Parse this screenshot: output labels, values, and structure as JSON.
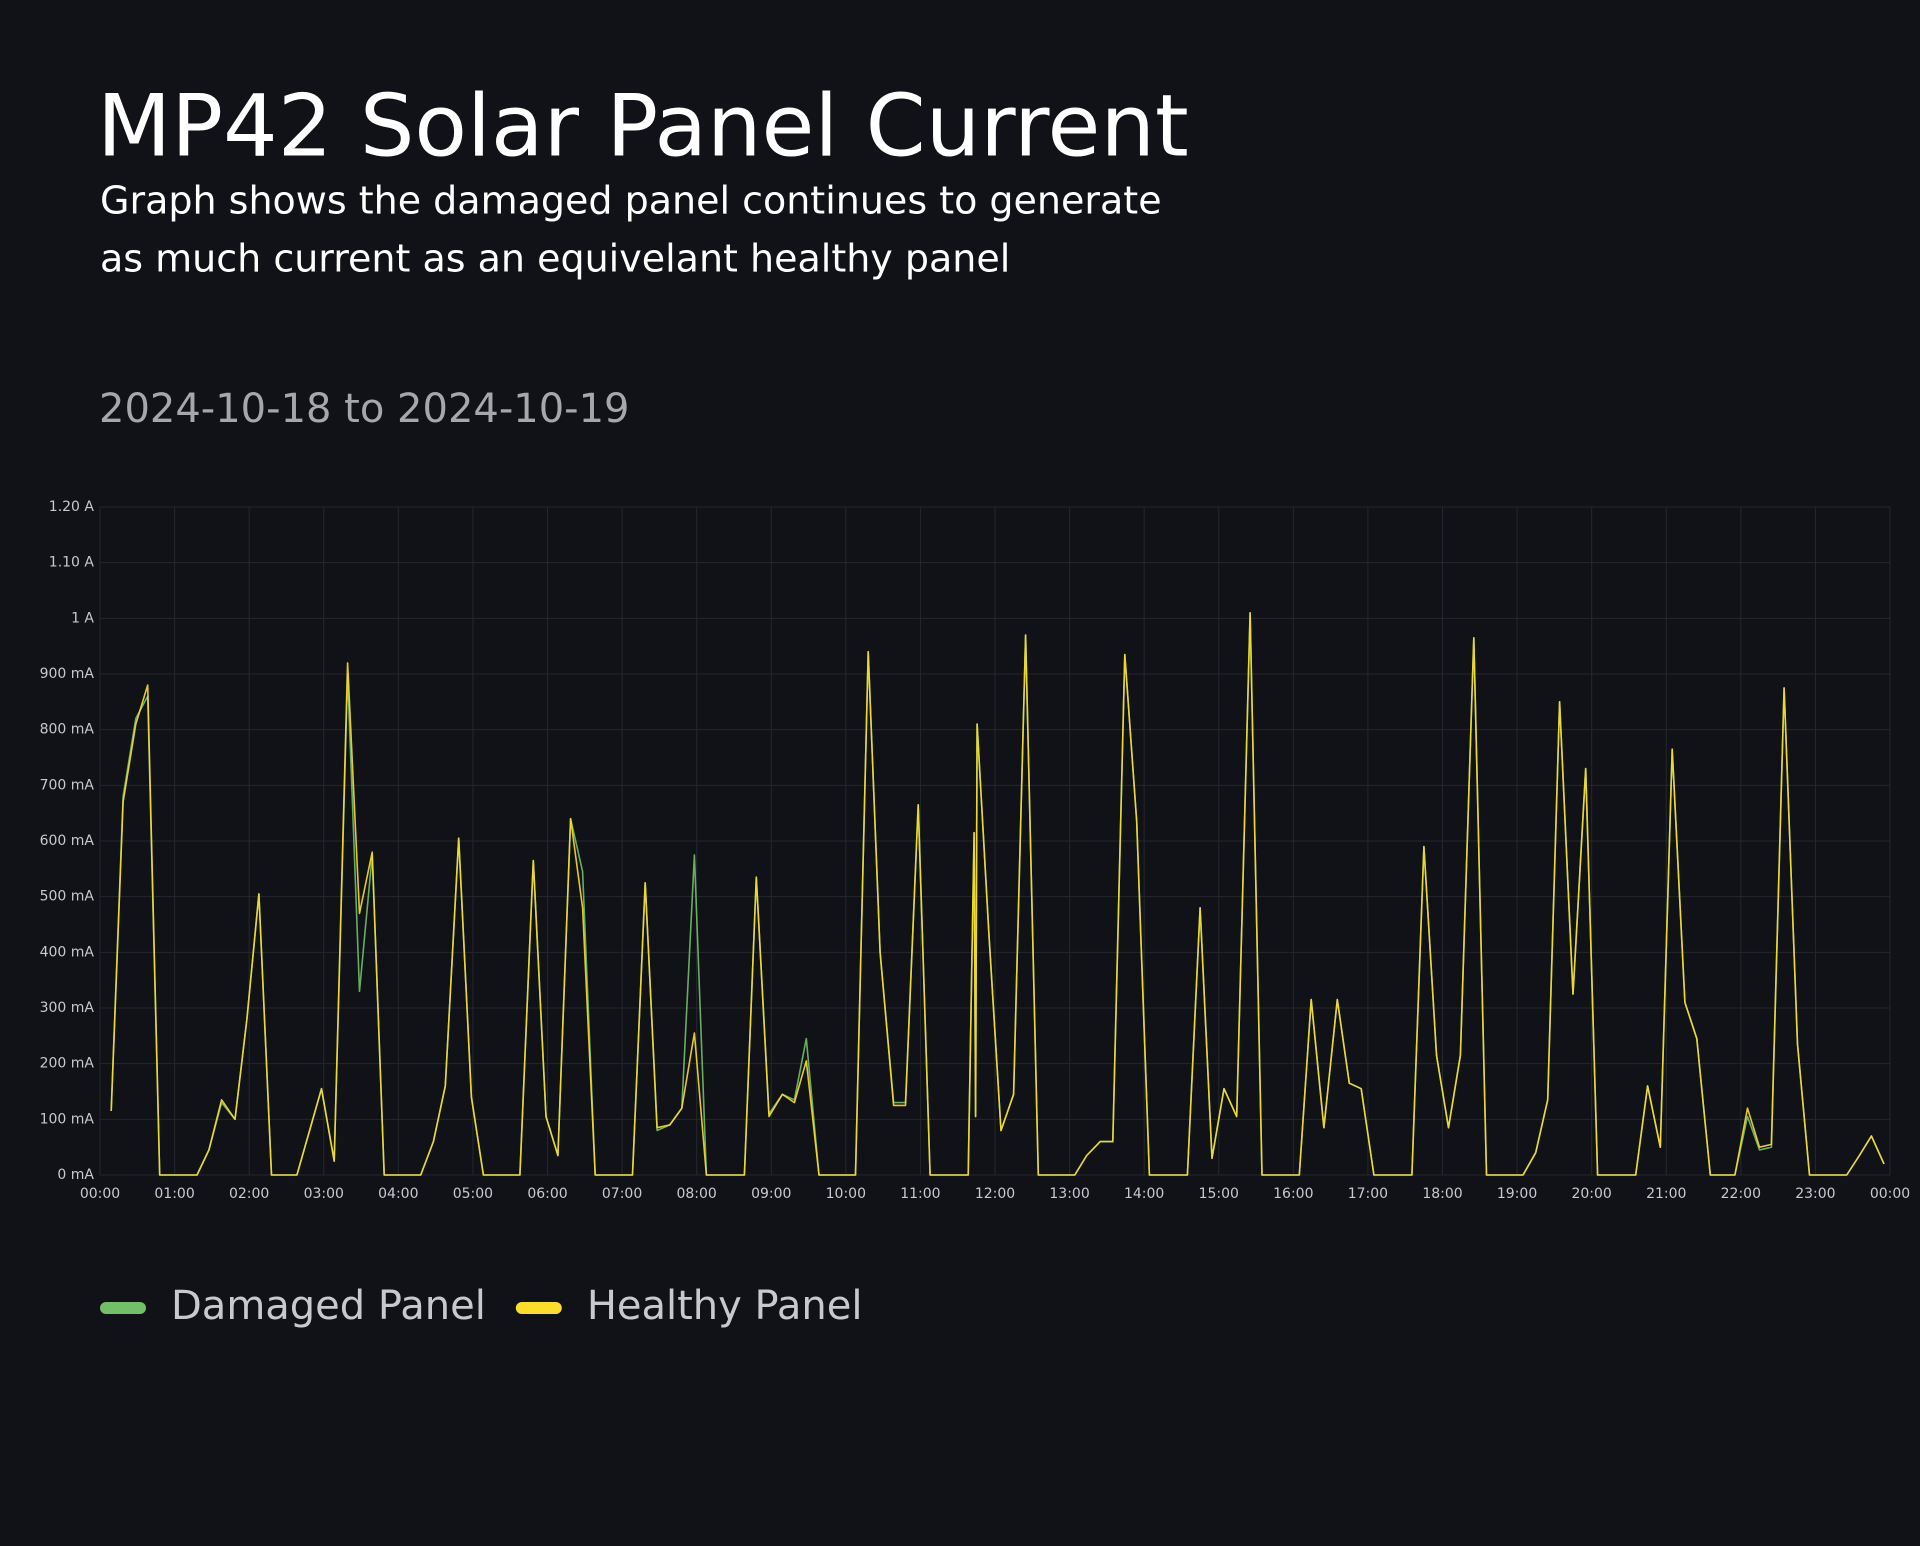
{
  "chart_data": {
    "type": "line",
    "title": "MP42 Solar Panel Current",
    "subtitle": [
      "Graph shows the damaged panel continues to generate",
      "as much current as an equivelant healthy panel"
    ],
    "date_range": "2024-10-18 to 2024-10-19",
    "x": [
      0.15,
      0.31,
      0.48,
      0.64,
      0.8,
      1.3,
      1.46,
      1.63,
      1.81,
      1.97,
      2.13,
      2.3,
      2.64,
      2.81,
      2.97,
      3.14,
      3.32,
      3.48,
      3.65,
      3.81,
      4.3,
      4.47,
      4.63,
      4.81,
      4.98,
      5.14,
      5.63,
      5.81,
      5.98,
      6.14,
      6.31,
      6.47,
      6.64,
      7.14,
      7.31,
      7.47,
      7.64,
      7.8,
      7.97,
      8.13,
      8.64,
      8.8,
      8.97,
      9.15,
      9.31,
      9.47,
      9.64,
      10.13,
      10.3,
      10.46,
      10.64,
      10.8,
      10.97,
      11.13,
      11.64,
      11.72,
      11.74,
      11.76,
      11.92,
      12.08,
      12.25,
      12.41,
      12.58,
      13.07,
      13.23,
      13.41,
      13.58,
      13.74,
      13.9,
      14.07,
      14.58,
      14.75,
      14.91,
      15.07,
      15.24,
      15.42,
      15.58,
      16.08,
      16.24,
      16.41,
      16.59,
      16.75,
      16.91,
      17.08,
      17.59,
      17.75,
      17.92,
      18.08,
      18.24,
      18.42,
      18.59,
      19.08,
      19.25,
      19.41,
      19.57,
      19.75,
      19.92,
      20.08,
      20.59,
      20.75,
      20.92,
      21.08,
      21.25,
      21.41,
      21.59,
      21.92,
      22.09,
      22.25,
      22.41,
      22.58,
      22.76,
      22.92,
      23.42,
      23.59,
      23.75,
      23.92
    ],
    "series": [
      {
        "name": "Damaged Panel",
        "color": "#73bf69",
        "values": [
          115,
          680,
          820,
          860,
          0,
          0,
          45,
          130,
          100,
          280,
          505,
          0,
          0,
          80,
          155,
          25,
          900,
          330,
          575,
          0,
          0,
          60,
          160,
          605,
          140,
          0,
          0,
          565,
          105,
          35,
          640,
          545,
          0,
          0,
          525,
          80,
          90,
          120,
          575,
          0,
          0,
          535,
          110,
          145,
          135,
          245,
          0,
          0,
          940,
          400,
          130,
          130,
          665,
          0,
          0,
          615,
          105,
          810,
          430,
          80,
          145,
          970,
          0,
          0,
          35,
          60,
          60,
          935,
          635,
          0,
          0,
          480,
          30,
          155,
          105,
          1010,
          0,
          0,
          315,
          85,
          315,
          165,
          155,
          0,
          0,
          590,
          215,
          85,
          215,
          965,
          0,
          0,
          40,
          135,
          850,
          325,
          730,
          0,
          0,
          160,
          50,
          765,
          310,
          245,
          0,
          0,
          105,
          45,
          50,
          875,
          235,
          0,
          0,
          35,
          70,
          20
        ]
      },
      {
        "name": "Healthy Panel",
        "color": "#fade2a",
        "values": [
          115,
          670,
          810,
          880,
          0,
          0,
          45,
          135,
          100,
          280,
          505,
          0,
          0,
          80,
          155,
          25,
          920,
          470,
          580,
          0,
          0,
          60,
          160,
          605,
          140,
          0,
          0,
          565,
          105,
          35,
          640,
          480,
          0,
          0,
          525,
          85,
          90,
          120,
          255,
          0,
          0,
          535,
          105,
          145,
          130,
          205,
          0,
          0,
          940,
          400,
          125,
          125,
          665,
          0,
          0,
          615,
          105,
          810,
          430,
          80,
          145,
          970,
          0,
          0,
          35,
          60,
          60,
          935,
          635,
          0,
          0,
          480,
          30,
          155,
          105,
          1010,
          0,
          0,
          315,
          85,
          315,
          165,
          155,
          0,
          0,
          590,
          215,
          85,
          215,
          965,
          0,
          0,
          40,
          135,
          850,
          325,
          730,
          0,
          0,
          160,
          50,
          765,
          310,
          245,
          0,
          0,
          120,
          50,
          55,
          875,
          235,
          0,
          0,
          35,
          70,
          20
        ]
      }
    ],
    "xlim": [
      0,
      24
    ],
    "xticks": [
      {
        "value": 0,
        "label": "00:00"
      },
      {
        "value": 1,
        "label": "01:00"
      },
      {
        "value": 2,
        "label": "02:00"
      },
      {
        "value": 3,
        "label": "03:00"
      },
      {
        "value": 4,
        "label": "04:00"
      },
      {
        "value": 5,
        "label": "05:00"
      },
      {
        "value": 6,
        "label": "06:00"
      },
      {
        "value": 7,
        "label": "07:00"
      },
      {
        "value": 8,
        "label": "08:00"
      },
      {
        "value": 9,
        "label": "09:00"
      },
      {
        "value": 10,
        "label": "10:00"
      },
      {
        "value": 11,
        "label": "11:00"
      },
      {
        "value": 12,
        "label": "12:00"
      },
      {
        "value": 13,
        "label": "13:00"
      },
      {
        "value": 14,
        "label": "14:00"
      },
      {
        "value": 15,
        "label": "15:00"
      },
      {
        "value": 16,
        "label": "16:00"
      },
      {
        "value": 17,
        "label": "17:00"
      },
      {
        "value": 18,
        "label": "18:00"
      },
      {
        "value": 19,
        "label": "19:00"
      },
      {
        "value": 20,
        "label": "20:00"
      },
      {
        "value": 21,
        "label": "21:00"
      },
      {
        "value": 22,
        "label": "22:00"
      },
      {
        "value": 23,
        "label": "23:00"
      },
      {
        "value": 24,
        "label": "00:00"
      }
    ],
    "ylim": [
      0,
      1200
    ],
    "yticks": [
      {
        "value": 0,
        "label": "0 mA"
      },
      {
        "value": 100,
        "label": "100 mA"
      },
      {
        "value": 200,
        "label": "200 mA"
      },
      {
        "value": 300,
        "label": "300 mA"
      },
      {
        "value": 400,
        "label": "400 mA"
      },
      {
        "value": 500,
        "label": "500 mA"
      },
      {
        "value": 600,
        "label": "600 mA"
      },
      {
        "value": 700,
        "label": "700 mA"
      },
      {
        "value": 800,
        "label": "800 mA"
      },
      {
        "value": 900,
        "label": "900 mA"
      },
      {
        "value": 1000,
        "label": "1 A"
      },
      {
        "value": 1100,
        "label": "1.10 A"
      },
      {
        "value": 1200,
        "label": "1.20 A"
      }
    ],
    "grid": true
  }
}
